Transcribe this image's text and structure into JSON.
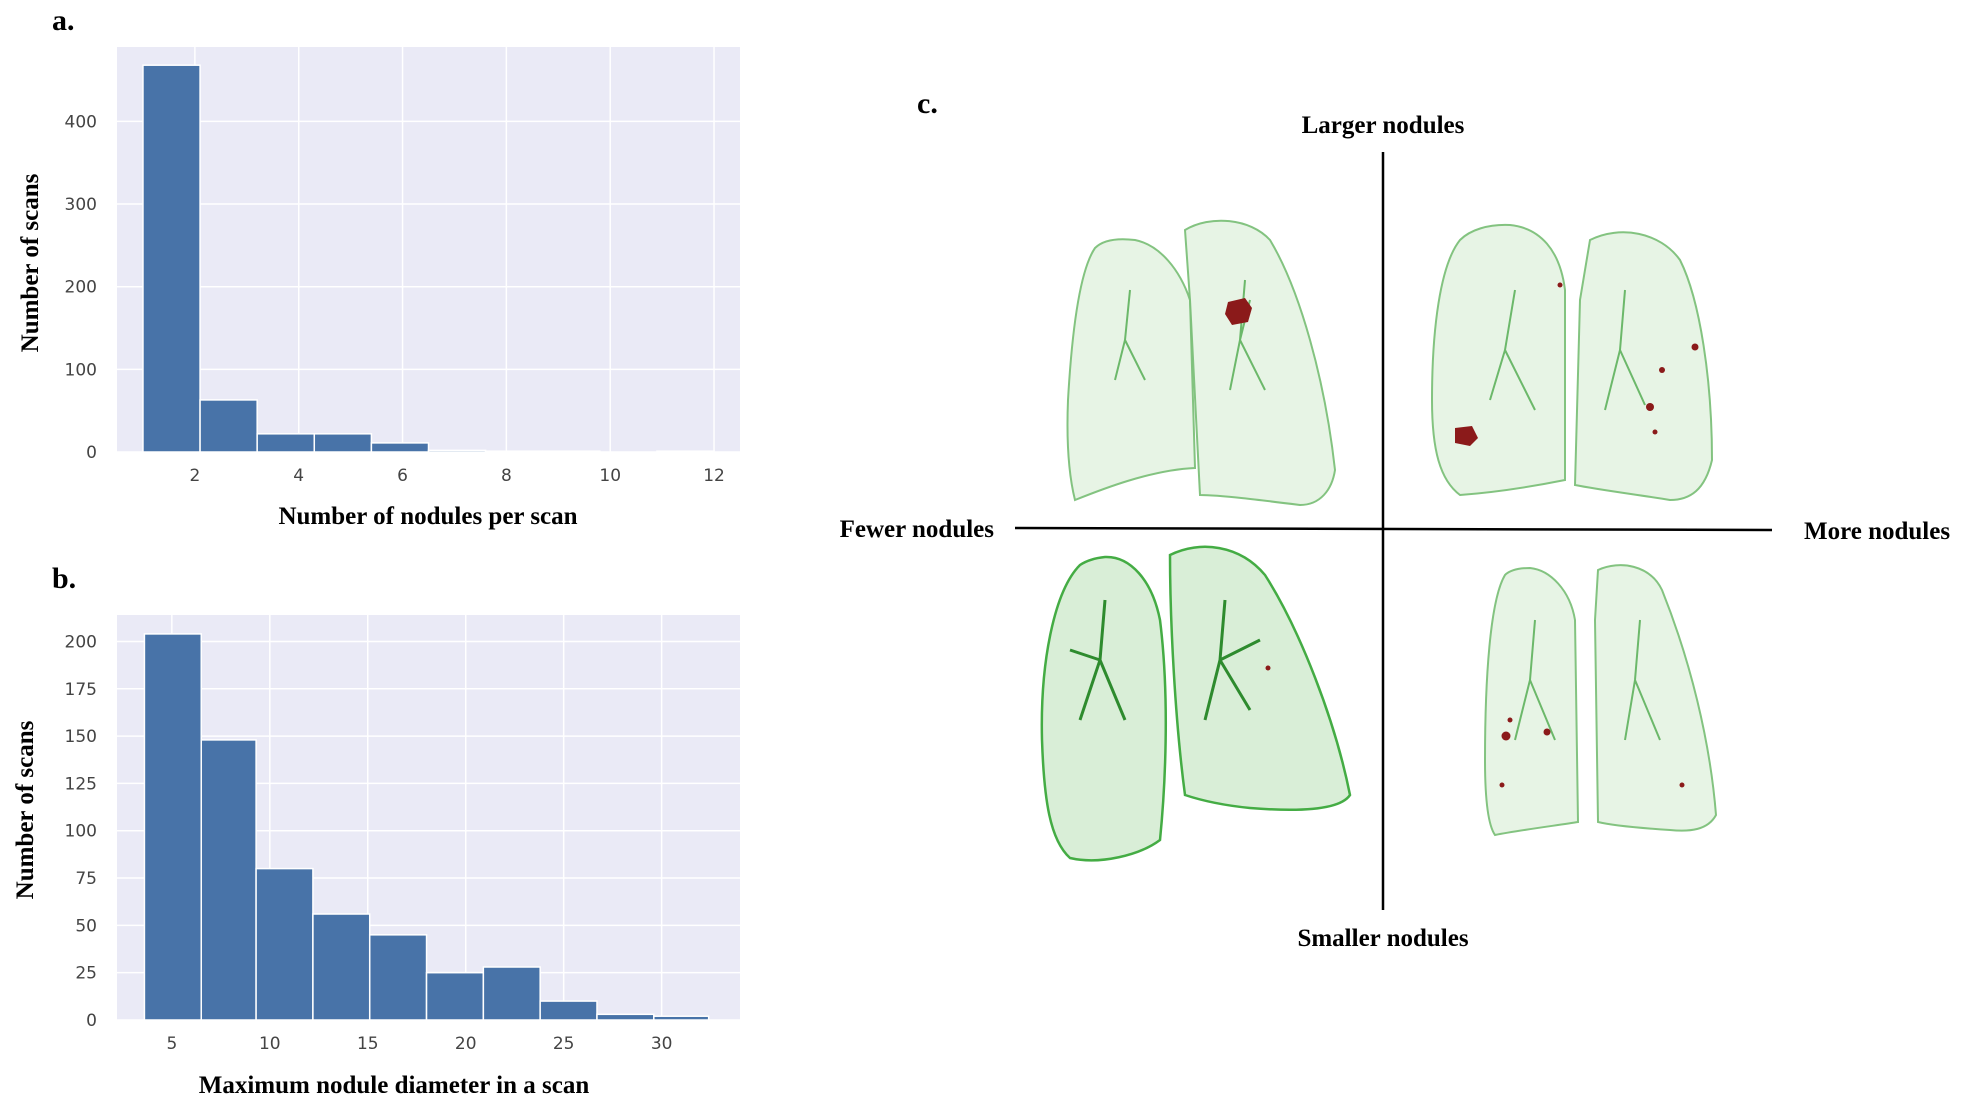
{
  "panels": {
    "a": {
      "letter": "a."
    },
    "b": {
      "letter": "b."
    },
    "c": {
      "letter": "c."
    }
  },
  "colors": {
    "bar": "#4873a8",
    "plot_background": "#eaeaf6",
    "lung_outline": "#3aa83a",
    "nodule": "#8b1a1a"
  },
  "chart_data": [
    {
      "id": "a",
      "type": "bar",
      "kind": "histogram",
      "xlabel": "Number of nodules per scan",
      "ylabel": "Number of scans",
      "xlim": [
        0.5,
        12.5
      ],
      "ylim": [
        0,
        490
      ],
      "xticks": [
        2,
        4,
        6,
        8,
        10,
        12
      ],
      "yticks": [
        0,
        100,
        200,
        300,
        400
      ],
      "bins": [
        {
          "x0": 1.0,
          "x1": 2.1,
          "value": 468
        },
        {
          "x0": 2.1,
          "x1": 3.2,
          "value": 63
        },
        {
          "x0": 3.2,
          "x1": 4.3,
          "value": 22
        },
        {
          "x0": 4.3,
          "x1": 5.4,
          "value": 22
        },
        {
          "x0": 5.4,
          "x1": 6.5,
          "value": 11
        },
        {
          "x0": 6.5,
          "x1": 7.6,
          "value": 2
        },
        {
          "x0": 7.6,
          "x1": 8.7,
          "value": 1
        },
        {
          "x0": 8.7,
          "x1": 9.8,
          "value": 1
        },
        {
          "x0": 9.8,
          "x1": 10.9,
          "value": 0
        },
        {
          "x0": 10.9,
          "x1": 12.0,
          "value": 1
        }
      ],
      "grid": true
    },
    {
      "id": "b",
      "type": "bar",
      "kind": "histogram",
      "xlabel": "Maximum nodule diameter in a scan",
      "ylabel": "Number of scans",
      "xlim": [
        2.2,
        34.0
      ],
      "ylim": [
        0,
        214
      ],
      "xticks": [
        5,
        10,
        15,
        20,
        25,
        30
      ],
      "yticks": [
        0,
        25,
        50,
        75,
        100,
        125,
        150,
        175,
        200
      ],
      "bins": [
        {
          "x0": 3.6,
          "x1": 6.5,
          "value": 204
        },
        {
          "x0": 6.5,
          "x1": 9.3,
          "value": 148
        },
        {
          "x0": 9.3,
          "x1": 12.2,
          "value": 80
        },
        {
          "x0": 12.2,
          "x1": 15.1,
          "value": 56
        },
        {
          "x0": 15.1,
          "x1": 18.0,
          "value": 45
        },
        {
          "x0": 18.0,
          "x1": 20.9,
          "value": 25
        },
        {
          "x0": 20.9,
          "x1": 23.8,
          "value": 28
        },
        {
          "x0": 23.8,
          "x1": 26.7,
          "value": 10
        },
        {
          "x0": 26.7,
          "x1": 29.6,
          "value": 3
        },
        {
          "x0": 29.6,
          "x1": 32.4,
          "value": 2
        }
      ],
      "grid": true
    }
  ],
  "quadrant": {
    "top": "Larger nodules",
    "bottom": "Smaller nodules",
    "left": "Fewer nodules",
    "right": "More nodules",
    "images": [
      {
        "position": "top-left",
        "description_icon": "lung-3d-icon",
        "nodules": 1
      },
      {
        "position": "top-right",
        "description_icon": "lung-3d-icon",
        "nodules": 6
      },
      {
        "position": "bottom-left",
        "description_icon": "lung-3d-icon",
        "nodules": 1
      },
      {
        "position": "bottom-right",
        "description_icon": "lung-3d-icon",
        "nodules": 5
      }
    ]
  }
}
